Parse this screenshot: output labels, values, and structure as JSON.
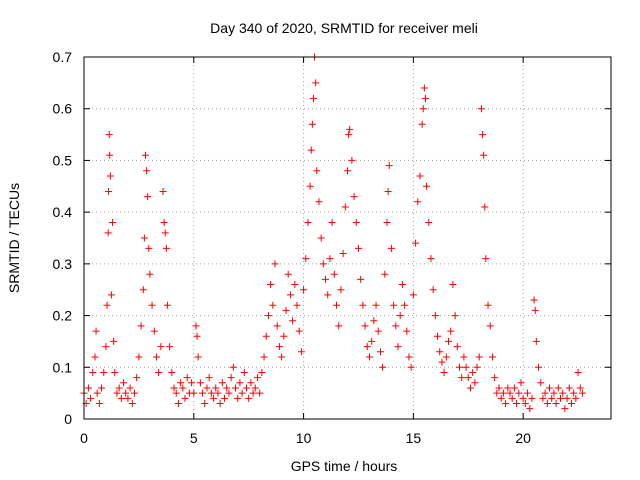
{
  "chart_data": {
    "type": "scatter",
    "title": "Day 340 of 2020, SRMTID for receiver meli",
    "xlabel": "GPS time / hours",
    "ylabel": "SRMTID / TECUs",
    "xlim": [
      0,
      24
    ],
    "ylim": [
      0,
      0.7
    ],
    "xticks": [
      0,
      5,
      10,
      15,
      20
    ],
    "yticks": [
      0,
      0.1,
      0.2,
      0.3,
      0.4,
      0.5,
      0.6,
      0.7
    ],
    "xtick_labels": [
      "0",
      "5",
      "10",
      "15",
      "20"
    ],
    "ytick_labels": [
      "0",
      "0.1",
      "0.2",
      "0.3",
      "0.4",
      "0.5",
      "0.6",
      "0.7"
    ],
    "grid": true,
    "marker": "+",
    "color": "#ff0000",
    "series": [
      {
        "name": "meli",
        "points": [
          [
            0.0,
            0.05
          ],
          [
            0.1,
            0.03
          ],
          [
            0.2,
            0.06
          ],
          [
            0.3,
            0.04
          ],
          [
            0.4,
            0.09
          ],
          [
            0.5,
            0.12
          ],
          [
            0.55,
            0.17
          ],
          [
            0.6,
            0.05
          ],
          [
            0.7,
            0.03
          ],
          [
            0.8,
            0.06
          ],
          [
            0.9,
            0.09
          ],
          [
            1.0,
            0.14
          ],
          [
            1.05,
            0.22
          ],
          [
            1.1,
            0.36
          ],
          [
            1.12,
            0.44
          ],
          [
            1.15,
            0.55
          ],
          [
            1.17,
            0.51
          ],
          [
            1.2,
            0.47
          ],
          [
            1.25,
            0.24
          ],
          [
            1.3,
            0.38
          ],
          [
            1.35,
            0.15
          ],
          [
            1.4,
            0.09
          ],
          [
            1.5,
            0.05
          ],
          [
            1.6,
            0.06
          ],
          [
            1.7,
            0.04
          ],
          [
            1.8,
            0.07
          ],
          [
            1.9,
            0.05
          ],
          [
            2.0,
            0.04
          ],
          [
            2.1,
            0.06
          ],
          [
            2.2,
            0.03
          ],
          [
            2.3,
            0.05
          ],
          [
            2.4,
            0.08
          ],
          [
            2.5,
            0.12
          ],
          [
            2.6,
            0.18
          ],
          [
            2.7,
            0.25
          ],
          [
            2.75,
            0.35
          ],
          [
            2.8,
            0.51
          ],
          [
            2.85,
            0.48
          ],
          [
            2.9,
            0.43
          ],
          [
            2.95,
            0.33
          ],
          [
            3.0,
            0.28
          ],
          [
            3.1,
            0.22
          ],
          [
            3.2,
            0.17
          ],
          [
            3.3,
            0.12
          ],
          [
            3.4,
            0.09
          ],
          [
            3.5,
            0.14
          ],
          [
            3.6,
            0.44
          ],
          [
            3.65,
            0.38
          ],
          [
            3.7,
            0.36
          ],
          [
            3.75,
            0.33
          ],
          [
            3.8,
            0.22
          ],
          [
            3.9,
            0.14
          ],
          [
            4.0,
            0.09
          ],
          [
            4.1,
            0.06
          ],
          [
            4.2,
            0.05
          ],
          [
            4.3,
            0.03
          ],
          [
            4.4,
            0.07
          ],
          [
            4.5,
            0.06
          ],
          [
            4.6,
            0.04
          ],
          [
            4.7,
            0.08
          ],
          [
            4.8,
            0.05
          ],
          [
            4.9,
            0.07
          ],
          [
            5.0,
            0.05
          ],
          [
            5.1,
            0.18
          ],
          [
            5.15,
            0.16
          ],
          [
            5.2,
            0.12
          ],
          [
            5.3,
            0.07
          ],
          [
            5.4,
            0.05
          ],
          [
            5.5,
            0.03
          ],
          [
            5.6,
            0.06
          ],
          [
            5.7,
            0.08
          ],
          [
            5.8,
            0.05
          ],
          [
            5.9,
            0.04
          ],
          [
            6.0,
            0.06
          ],
          [
            6.1,
            0.05
          ],
          [
            6.2,
            0.03
          ],
          [
            6.3,
            0.07
          ],
          [
            6.4,
            0.04
          ],
          [
            6.5,
            0.06
          ],
          [
            6.6,
            0.05
          ],
          [
            6.7,
            0.08
          ],
          [
            6.8,
            0.1
          ],
          [
            6.9,
            0.06
          ],
          [
            7.0,
            0.04
          ],
          [
            7.1,
            0.07
          ],
          [
            7.2,
            0.05
          ],
          [
            7.3,
            0.09
          ],
          [
            7.4,
            0.06
          ],
          [
            7.5,
            0.04
          ],
          [
            7.6,
            0.07
          ],
          [
            7.7,
            0.05
          ],
          [
            7.8,
            0.06
          ],
          [
            7.9,
            0.08
          ],
          [
            8.0,
            0.05
          ],
          [
            8.1,
            0.09
          ],
          [
            8.2,
            0.12
          ],
          [
            8.3,
            0.16
          ],
          [
            8.4,
            0.2
          ],
          [
            8.5,
            0.26
          ],
          [
            8.6,
            0.22
          ],
          [
            8.7,
            0.3
          ],
          [
            8.8,
            0.18
          ],
          [
            8.9,
            0.14
          ],
          [
            9.0,
            0.12
          ],
          [
            9.1,
            0.16
          ],
          [
            9.2,
            0.21
          ],
          [
            9.3,
            0.28
          ],
          [
            9.4,
            0.24
          ],
          [
            9.5,
            0.19
          ],
          [
            9.6,
            0.26
          ],
          [
            9.7,
            0.22
          ],
          [
            9.8,
            0.17
          ],
          [
            9.9,
            0.13
          ],
          [
            10.0,
            0.25
          ],
          [
            10.1,
            0.31
          ],
          [
            10.2,
            0.38
          ],
          [
            10.3,
            0.45
          ],
          [
            10.35,
            0.52
          ],
          [
            10.4,
            0.57
          ],
          [
            10.45,
            0.62
          ],
          [
            10.5,
            0.7
          ],
          [
            10.55,
            0.65
          ],
          [
            10.6,
            0.48
          ],
          [
            10.7,
            0.42
          ],
          [
            10.8,
            0.35
          ],
          [
            10.9,
            0.3
          ],
          [
            11.0,
            0.27
          ],
          [
            11.1,
            0.24
          ],
          [
            11.2,
            0.31
          ],
          [
            11.3,
            0.38
          ],
          [
            11.4,
            0.28
          ],
          [
            11.5,
            0.22
          ],
          [
            11.6,
            0.18
          ],
          [
            11.7,
            0.25
          ],
          [
            11.8,
            0.32
          ],
          [
            11.9,
            0.41
          ],
          [
            12.0,
            0.48
          ],
          [
            12.05,
            0.55
          ],
          [
            12.1,
            0.56
          ],
          [
            12.2,
            0.5
          ],
          [
            12.3,
            0.43
          ],
          [
            12.4,
            0.38
          ],
          [
            12.5,
            0.33
          ],
          [
            12.6,
            0.27
          ],
          [
            12.7,
            0.22
          ],
          [
            12.8,
            0.18
          ],
          [
            12.9,
            0.14
          ],
          [
            13.0,
            0.12
          ],
          [
            13.1,
            0.15
          ],
          [
            13.2,
            0.19
          ],
          [
            13.3,
            0.22
          ],
          [
            13.4,
            0.17
          ],
          [
            13.5,
            0.13
          ],
          [
            13.6,
            0.1
          ],
          [
            13.7,
            0.28
          ],
          [
            13.8,
            0.38
          ],
          [
            13.85,
            0.44
          ],
          [
            13.9,
            0.49
          ],
          [
            14.0,
            0.33
          ],
          [
            14.1,
            0.22
          ],
          [
            14.2,
            0.18
          ],
          [
            14.3,
            0.14
          ],
          [
            14.4,
            0.2
          ],
          [
            14.5,
            0.26
          ],
          [
            14.6,
            0.22
          ],
          [
            14.7,
            0.17
          ],
          [
            14.8,
            0.12
          ],
          [
            14.9,
            0.1
          ],
          [
            15.0,
            0.24
          ],
          [
            15.1,
            0.34
          ],
          [
            15.2,
            0.42
          ],
          [
            15.3,
            0.47
          ],
          [
            15.4,
            0.57
          ],
          [
            15.45,
            0.6
          ],
          [
            15.5,
            0.64
          ],
          [
            15.55,
            0.62
          ],
          [
            15.6,
            0.45
          ],
          [
            15.7,
            0.38
          ],
          [
            15.8,
            0.31
          ],
          [
            15.9,
            0.25
          ],
          [
            16.0,
            0.2
          ],
          [
            16.1,
            0.16
          ],
          [
            16.2,
            0.13
          ],
          [
            16.3,
            0.11
          ],
          [
            16.4,
            0.09
          ],
          [
            16.5,
            0.12
          ],
          [
            16.6,
            0.15
          ],
          [
            16.7,
            0.17
          ],
          [
            16.8,
            0.26
          ],
          [
            16.9,
            0.2
          ],
          [
            17.0,
            0.14
          ],
          [
            17.1,
            0.1
          ],
          [
            17.2,
            0.08
          ],
          [
            17.3,
            0.12
          ],
          [
            17.4,
            0.1
          ],
          [
            17.5,
            0.08
          ],
          [
            17.6,
            0.06
          ],
          [
            17.7,
            0.09
          ],
          [
            17.8,
            0.07
          ],
          [
            17.9,
            0.1
          ],
          [
            18.0,
            0.12
          ],
          [
            18.1,
            0.6
          ],
          [
            18.15,
            0.55
          ],
          [
            18.2,
            0.51
          ],
          [
            18.25,
            0.41
          ],
          [
            18.3,
            0.31
          ],
          [
            18.4,
            0.22
          ],
          [
            18.5,
            0.18
          ],
          [
            18.6,
            0.12
          ],
          [
            18.7,
            0.08
          ],
          [
            18.8,
            0.05
          ],
          [
            18.9,
            0.06
          ],
          [
            19.0,
            0.04
          ],
          [
            19.1,
            0.05
          ],
          [
            19.2,
            0.03
          ],
          [
            19.3,
            0.06
          ],
          [
            19.4,
            0.05
          ],
          [
            19.5,
            0.04
          ],
          [
            19.6,
            0.06
          ],
          [
            19.7,
            0.03
          ],
          [
            19.8,
            0.05
          ],
          [
            19.9,
            0.07
          ],
          [
            20.0,
            0.04
          ],
          [
            20.1,
            0.03
          ],
          [
            20.2,
            0.05
          ],
          [
            20.3,
            0.02
          ],
          [
            20.4,
            0.04
          ],
          [
            20.5,
            0.23
          ],
          [
            20.55,
            0.21
          ],
          [
            20.6,
            0.15
          ],
          [
            20.7,
            0.1
          ],
          [
            20.8,
            0.07
          ],
          [
            20.9,
            0.04
          ],
          [
            21.0,
            0.05
          ],
          [
            21.1,
            0.03
          ],
          [
            21.2,
            0.06
          ],
          [
            21.3,
            0.04
          ],
          [
            21.4,
            0.05
          ],
          [
            21.5,
            0.03
          ],
          [
            21.6,
            0.06
          ],
          [
            21.7,
            0.04
          ],
          [
            21.8,
            0.05
          ],
          [
            21.9,
            0.02
          ],
          [
            22.0,
            0.04
          ],
          [
            22.1,
            0.06
          ],
          [
            22.2,
            0.03
          ],
          [
            22.3,
            0.05
          ],
          [
            22.4,
            0.04
          ],
          [
            22.5,
            0.09
          ],
          [
            22.6,
            0.06
          ],
          [
            22.7,
            0.05
          ]
        ]
      }
    ]
  }
}
